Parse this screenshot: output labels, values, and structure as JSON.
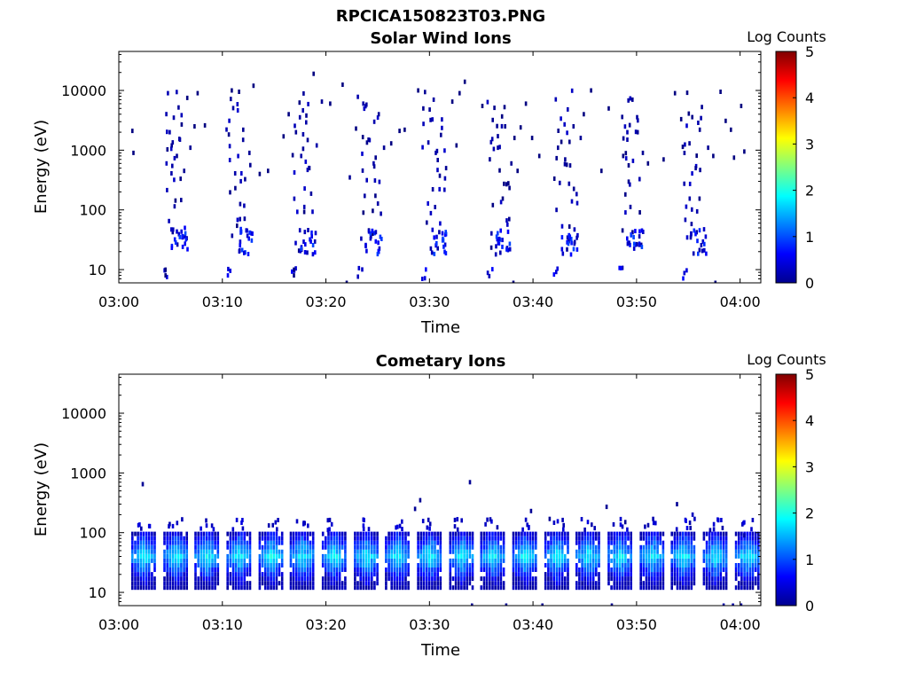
{
  "figure_title": "RPCICA150823T03.PNG",
  "colorbar": {
    "label": "Log Counts",
    "min": 0,
    "max": 5,
    "ticks": [
      0,
      1,
      2,
      3,
      4,
      5
    ],
    "colormap": "jet"
  },
  "chart_data": [
    {
      "type": "heatmap",
      "title": "Solar Wind Ions",
      "xlabel": "Time",
      "ylabel": "Energy (eV)",
      "yscale": "log",
      "ylim": [
        6,
        45000
      ],
      "xlim": [
        "03:00",
        "04:02"
      ],
      "xticks": [
        "03:00",
        "03:10",
        "03:20",
        "03:30",
        "03:40",
        "03:50",
        "04:00"
      ],
      "yticks": [
        10,
        100,
        1000,
        10000
      ],
      "scan_period_min": 6.1,
      "scan_starts_min": [
        4.4,
        10.6,
        16.8,
        23.1,
        29.4,
        35.7,
        42.0,
        48.3,
        54.5
      ],
      "value_range": [
        0,
        1.2
      ],
      "points": [
        [
          1.2,
          2100,
          0
        ],
        [
          1.3,
          900,
          0
        ],
        [
          4.5,
          600,
          0.3
        ],
        [
          4.8,
          2000,
          0.2
        ],
        [
          5.0,
          1200,
          0.1
        ],
        [
          5.2,
          3500,
          0.2
        ],
        [
          5.5,
          800,
          0.1
        ],
        [
          5.8,
          1500,
          0.2
        ],
        [
          6.2,
          450,
          0.1
        ],
        [
          6.5,
          7500,
          0
        ],
        [
          6.8,
          1100,
          0.1
        ],
        [
          7.2,
          2500,
          0
        ],
        [
          7.5,
          9000,
          0
        ],
        [
          8.2,
          2600,
          0
        ],
        [
          10.8,
          10000,
          0
        ],
        [
          11.5,
          9500,
          0
        ],
        [
          11.9,
          2200,
          0.1
        ],
        [
          12.5,
          900,
          0.1
        ],
        [
          12.9,
          12000,
          0
        ],
        [
          13.5,
          400,
          0
        ],
        [
          14.3,
          450,
          0
        ],
        [
          15.8,
          1700,
          0
        ],
        [
          16.3,
          4000,
          0
        ],
        [
          17.0,
          2000,
          0.1
        ],
        [
          17.5,
          800,
          0.2
        ],
        [
          18.0,
          3800,
          0.1
        ],
        [
          18.3,
          500,
          0.1
        ],
        [
          18.7,
          19000,
          0
        ],
        [
          19.0,
          1200,
          0.2
        ],
        [
          19.5,
          6500,
          0.1
        ],
        [
          20.3,
          6000,
          0
        ],
        [
          21.5,
          12500,
          0
        ],
        [
          22.2,
          350,
          0.1
        ],
        [
          22.8,
          2300,
          0
        ],
        [
          23.5,
          6000,
          0.2
        ],
        [
          24.0,
          1500,
          0.1
        ],
        [
          24.5,
          600,
          0.2
        ],
        [
          25.0,
          4000,
          0.1
        ],
        [
          25.5,
          1100,
          0.1
        ],
        [
          26.2,
          1300,
          0
        ],
        [
          27.0,
          2100,
          0
        ],
        [
          27.5,
          2200,
          0
        ],
        [
          28.8,
          10000,
          0
        ],
        [
          29.3,
          5000,
          0.1
        ],
        [
          30.0,
          3200,
          0.2
        ],
        [
          30.5,
          900,
          0.2
        ],
        [
          31.0,
          1800,
          0.1
        ],
        [
          31.5,
          500,
          0.1
        ],
        [
          32.1,
          6500,
          0
        ],
        [
          32.5,
          1200,
          0
        ],
        [
          32.8,
          9000,
          0
        ],
        [
          33.3,
          14000,
          0
        ],
        [
          35.0,
          5500,
          0
        ],
        [
          36.0,
          3200,
          0.1
        ],
        [
          36.5,
          1100,
          0.2
        ],
        [
          37.2,
          2500,
          0.1
        ],
        [
          37.8,
          600,
          0.1
        ],
        [
          38.1,
          1600,
          0
        ],
        [
          38.4,
          450,
          0
        ],
        [
          38.7,
          2400,
          0
        ],
        [
          39.2,
          6000,
          0
        ],
        [
          39.8,
          1600,
          0
        ],
        [
          40.5,
          800,
          0
        ],
        [
          42.3,
          1100,
          0.1
        ],
        [
          43.0,
          700,
          0.1
        ],
        [
          43.8,
          2500,
          0.1
        ],
        [
          44.5,
          1600,
          0.1
        ],
        [
          44.8,
          4000,
          0
        ],
        [
          45.5,
          10000,
          0
        ],
        [
          46.5,
          450,
          0
        ],
        [
          47.2,
          5000,
          0
        ],
        [
          48.5,
          3600,
          0.1
        ],
        [
          49.0,
          1500,
          0.2
        ],
        [
          49.5,
          7000,
          0.1
        ],
        [
          50.0,
          2000,
          0.1
        ],
        [
          50.5,
          900,
          0.1
        ],
        [
          51.0,
          600,
          0
        ],
        [
          52.5,
          700,
          0
        ],
        [
          53.6,
          9000,
          0
        ],
        [
          54.2,
          3300,
          0
        ],
        [
          55.0,
          1300,
          0.1
        ],
        [
          55.6,
          500,
          0.1
        ],
        [
          56.0,
          2200,
          0.1
        ],
        [
          56.8,
          1100,
          0.1
        ],
        [
          57.3,
          800,
          0
        ],
        [
          58.0,
          9500,
          0
        ],
        [
          58.5,
          3100,
          0
        ],
        [
          59.0,
          2200,
          0
        ],
        [
          60.0,
          5500,
          0
        ],
        [
          60.3,
          950,
          0
        ],
        [
          59.3,
          750,
          0
        ],
        [
          38.0,
          6,
          0
        ],
        [
          57.5,
          6,
          0
        ],
        [
          4.4,
          10,
          0
        ],
        [
          4.4,
          8,
          0
        ],
        [
          16.8,
          10,
          0
        ],
        [
          16.8,
          8,
          0
        ],
        [
          21.9,
          6,
          0
        ]
      ]
    },
    {
      "type": "heatmap",
      "title": "Cometary Ions",
      "xlabel": "Time",
      "ylabel": "Energy (eV)",
      "yscale": "log",
      "ylim": [
        6,
        45000
      ],
      "xlim": [
        "03:00",
        "04:02"
      ],
      "xticks": [
        "03:00",
        "03:10",
        "03:20",
        "03:30",
        "03:40",
        "03:50",
        "04:00"
      ],
      "yticks": [
        10,
        100,
        1000,
        10000
      ],
      "scan_period_min": 3.05,
      "scan_starts_min": [
        1.2,
        4.3,
        7.3,
        10.4,
        13.5,
        16.5,
        19.6,
        22.7,
        25.7,
        28.8,
        31.9,
        34.9,
        38.0,
        41.1,
        44.1,
        47.2,
        50.3,
        53.3,
        56.4,
        59.5
      ],
      "peak_energy_ev": 40,
      "peak_log_counts": 1.9,
      "energy_band_ev": [
        12,
        110
      ],
      "points": [
        [
          2.2,
          650,
          0.1
        ],
        [
          28.5,
          250,
          0.1
        ],
        [
          29.0,
          350,
          0.1
        ],
        [
          33.8,
          700,
          0.1
        ],
        [
          39.7,
          230,
          0.1
        ],
        [
          41.5,
          170,
          0.1
        ],
        [
          47.0,
          270,
          0.1
        ],
        [
          48.8,
          150,
          0.1
        ],
        [
          53.8,
          300,
          0.1
        ],
        [
          55.1,
          120,
          0.2
        ],
        [
          55.3,
          200,
          0.3
        ],
        [
          55.5,
          170,
          0.3
        ],
        [
          57.0,
          110,
          0.2
        ],
        [
          58.2,
          120,
          0.2
        ],
        [
          60.3,
          90,
          0.2
        ],
        [
          37.3,
          6,
          0.1
        ],
        [
          40.8,
          6,
          0.1
        ],
        [
          47.5,
          6,
          0.1
        ],
        [
          58.3,
          6,
          0.2
        ],
        [
          59.2,
          6,
          0.2
        ],
        [
          60.0,
          6,
          0.2
        ],
        [
          34.0,
          6,
          0.1
        ]
      ]
    }
  ]
}
